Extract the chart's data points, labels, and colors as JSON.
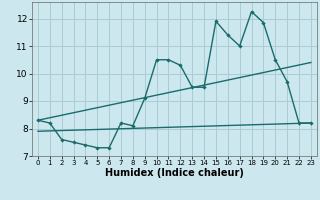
{
  "xlabel": "Humidex (Indice chaleur)",
  "bg_color": "#cce8ee",
  "grid_color": "#aaccd4",
  "line_color": "#1a6b6b",
  "xlim": [
    -0.5,
    23.5
  ],
  "ylim": [
    7,
    12.6
  ],
  "yticks": [
    7,
    8,
    9,
    10,
    11,
    12
  ],
  "xticks": [
    0,
    1,
    2,
    3,
    4,
    5,
    6,
    7,
    8,
    9,
    10,
    11,
    12,
    13,
    14,
    15,
    16,
    17,
    18,
    19,
    20,
    21,
    22,
    23
  ],
  "line1_x": [
    0,
    1,
    2,
    3,
    4,
    5,
    6,
    7,
    8,
    9,
    10,
    11,
    12,
    13,
    14,
    15,
    16,
    17,
    18,
    19,
    20,
    21,
    22,
    23
  ],
  "line1_y": [
    8.3,
    8.2,
    7.6,
    7.5,
    7.4,
    7.3,
    7.3,
    8.2,
    8.1,
    9.1,
    10.5,
    10.5,
    10.3,
    9.5,
    9.5,
    11.9,
    11.4,
    11.0,
    12.25,
    11.85,
    10.5,
    9.7,
    8.2,
    8.2
  ],
  "line2_x": [
    0,
    23
  ],
  "line2_y": [
    8.3,
    10.4
  ],
  "line3_x": [
    0,
    23
  ],
  "line3_y": [
    7.9,
    8.2
  ]
}
